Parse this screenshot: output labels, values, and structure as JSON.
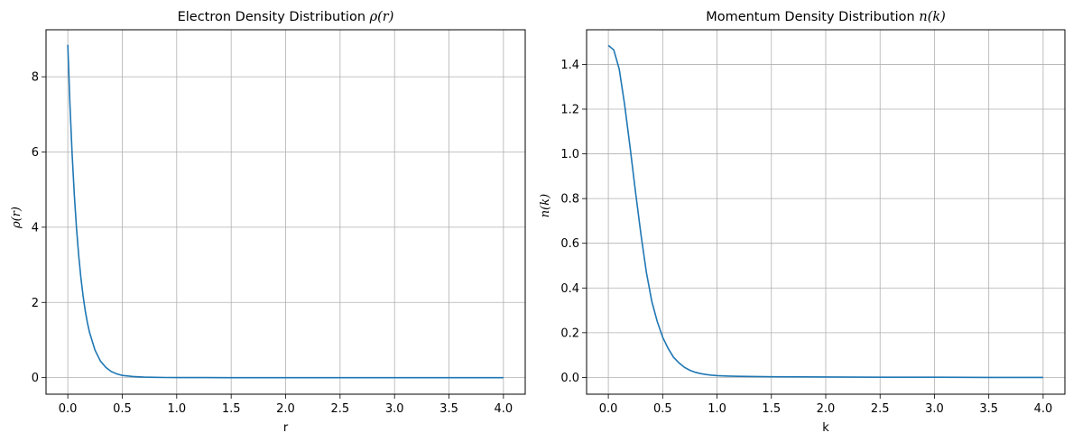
{
  "chart_data": [
    {
      "type": "line",
      "title": "Electron Density Distribution ",
      "title_math": "ρ(r)",
      "xlabel": "r",
      "ylabel": "ρ(r)",
      "xlim": [
        -0.2,
        4.2
      ],
      "ylim": [
        -0.44,
        9.25
      ],
      "xticks": [
        0.0,
        0.5,
        1.0,
        1.5,
        2.0,
        2.5,
        3.0,
        3.5,
        4.0
      ],
      "xtick_labels": [
        "0.0",
        "0.5",
        "1.0",
        "1.5",
        "2.0",
        "2.5",
        "3.0",
        "3.5",
        "4.0"
      ],
      "yticks": [
        0,
        2,
        4,
        6,
        8
      ],
      "ytick_labels": [
        "0",
        "2",
        "4",
        "6",
        "8"
      ],
      "grid": true,
      "line_color": "#1f77b4",
      "series": [
        {
          "name": "rho",
          "x": [
            0.0,
            0.02,
            0.04,
            0.06,
            0.08,
            0.1,
            0.12,
            0.14,
            0.16,
            0.18,
            0.2,
            0.25,
            0.3,
            0.35,
            0.4,
            0.45,
            0.5,
            0.6,
            0.7,
            0.8,
            0.9,
            1.0,
            1.25,
            1.5,
            2.0,
            2.5,
            3.0,
            3.5,
            4.0
          ],
          "y": [
            8.85,
            7.24,
            5.93,
            4.85,
            3.97,
            3.25,
            2.66,
            2.18,
            1.78,
            1.46,
            1.2,
            0.73,
            0.44,
            0.27,
            0.16,
            0.1,
            0.06,
            0.03,
            0.015,
            0.008,
            0.004,
            0.002,
            0.001,
            0.0,
            0.0,
            0.0,
            0.0,
            0.0,
            0.0
          ]
        }
      ]
    },
    {
      "type": "line",
      "title": "Momentum Density Distribution ",
      "title_math": "n(k)",
      "xlabel": "k",
      "ylabel": "n(k)",
      "xlim": [
        -0.2,
        4.2
      ],
      "ylim": [
        -0.075,
        1.555
      ],
      "xticks": [
        0.0,
        0.5,
        1.0,
        1.5,
        2.0,
        2.5,
        3.0,
        3.5,
        4.0
      ],
      "xtick_labels": [
        "0.0",
        "0.5",
        "1.0",
        "1.5",
        "2.0",
        "2.5",
        "3.0",
        "3.5",
        "4.0"
      ],
      "yticks": [
        0.0,
        0.2,
        0.4,
        0.6,
        0.8,
        1.0,
        1.2,
        1.4
      ],
      "ytick_labels": [
        "0.0",
        "0.2",
        "0.4",
        "0.6",
        "0.8",
        "1.0",
        "1.2",
        "1.4"
      ],
      "grid": true,
      "line_color": "#1f77b4",
      "series": [
        {
          "name": "n",
          "x": [
            0.0,
            0.05,
            0.1,
            0.15,
            0.2,
            0.25,
            0.3,
            0.35,
            0.4,
            0.45,
            0.5,
            0.55,
            0.6,
            0.65,
            0.7,
            0.75,
            0.8,
            0.85,
            0.9,
            0.95,
            1.0,
            1.1,
            1.2,
            1.5,
            2.0,
            2.5,
            3.0,
            3.5,
            4.0
          ],
          "y": [
            1.485,
            1.465,
            1.38,
            1.22,
            1.03,
            0.83,
            0.64,
            0.47,
            0.34,
            0.25,
            0.18,
            0.13,
            0.09,
            0.065,
            0.045,
            0.032,
            0.023,
            0.017,
            0.013,
            0.01,
            0.008,
            0.006,
            0.005,
            0.003,
            0.002,
            0.001,
            0.001,
            0.0,
            0.0
          ]
        }
      ]
    }
  ]
}
